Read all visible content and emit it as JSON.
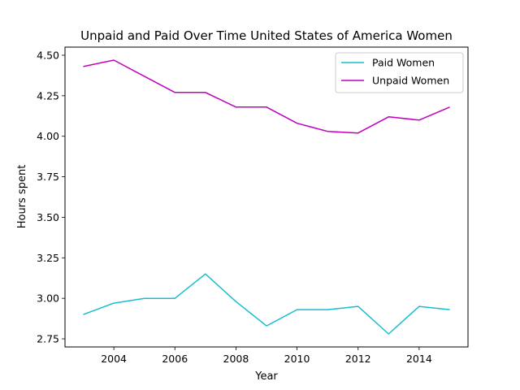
{
  "chart_data": {
    "type": "line",
    "title": "Unpaid and Paid Over Time United States of America Women",
    "xlabel": "Year",
    "ylabel": "Hours spent",
    "x": [
      2003,
      2004,
      2005,
      2006,
      2007,
      2008,
      2009,
      2010,
      2011,
      2012,
      2013,
      2014,
      2015
    ],
    "xlim": [
      2002.4,
      2015.6
    ],
    "ylim": [
      2.7,
      4.55
    ],
    "xticks": [
      2004,
      2006,
      2008,
      2010,
      2012,
      2014
    ],
    "yticks": [
      2.75,
      3.0,
      3.25,
      3.5,
      3.75,
      4.0,
      4.25,
      4.5
    ],
    "ytick_labels": [
      "2.75",
      "3.00",
      "3.25",
      "3.50",
      "3.75",
      "4.00",
      "4.25",
      "4.50"
    ],
    "grid": false,
    "legend_position": "top-right",
    "series": [
      {
        "name": "Paid Women",
        "color": "#17becf",
        "values": [
          2.9,
          2.97,
          3.0,
          3.0,
          3.15,
          2.98,
          2.83,
          2.93,
          2.93,
          2.95,
          2.78,
          2.95,
          2.93
        ]
      },
      {
        "name": "Unpaid Women",
        "color": "#bf00bf",
        "values": [
          4.43,
          4.47,
          4.37,
          4.27,
          4.27,
          4.18,
          4.18,
          4.08,
          4.03,
          4.02,
          4.12,
          4.1,
          4.18
        ]
      }
    ]
  }
}
